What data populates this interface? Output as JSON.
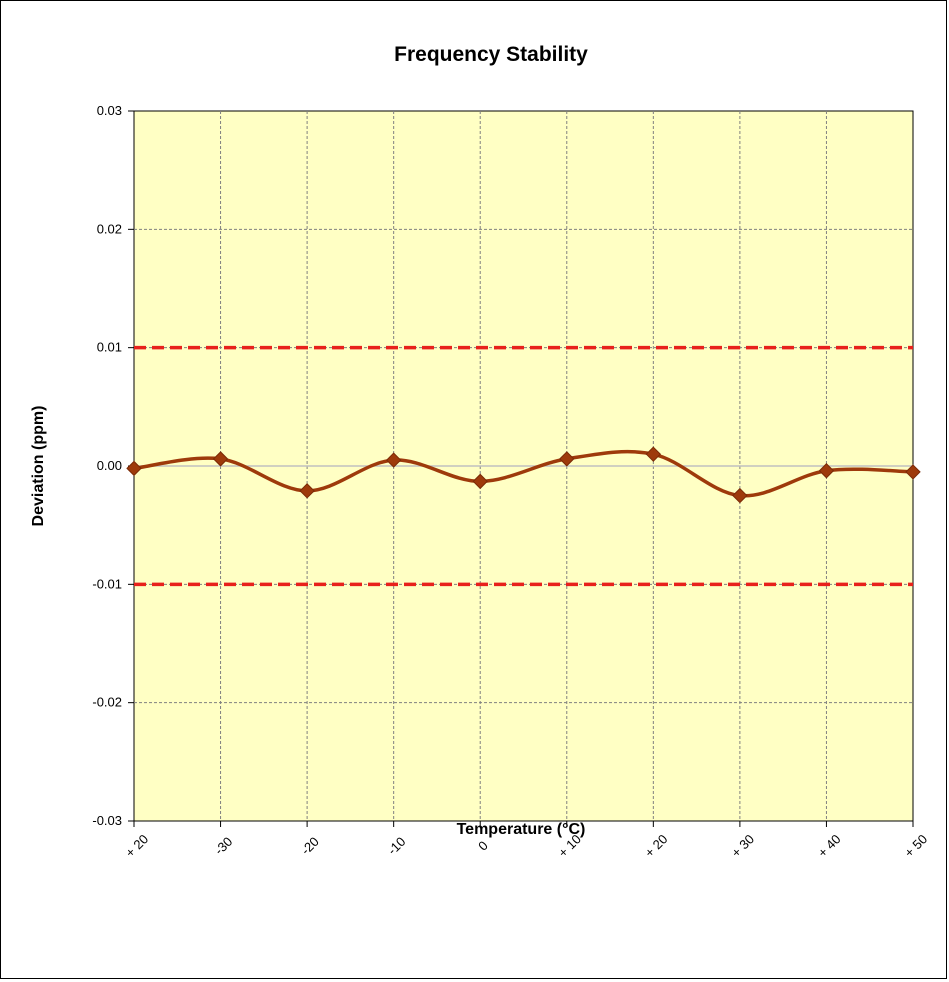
{
  "chart_data": {
    "type": "line",
    "title": "Frequency Stability",
    "xlabel": "Temperature (°C)",
    "ylabel": "Deviation (ppm)",
    "categories": [
      "+ 20",
      "-30",
      "-20",
      "-10",
      "0",
      "+ 10",
      "+ 20",
      "+ 30",
      "+ 40",
      "+ 50"
    ],
    "y_ticks": [
      "0.03",
      "0.02",
      "0.01",
      "0.00",
      "-0.01",
      "-0.02",
      "-0.03"
    ],
    "ylim": [
      -0.03,
      0.03
    ],
    "grid": true,
    "series": [
      {
        "values": [
          -0.0002,
          0.0006,
          -0.0021,
          0.0005,
          -0.0013,
          0.0006,
          0.001,
          -0.0025,
          -0.0004,
          -0.0005
        ],
        "color": "#9e3a0b",
        "marker": "diamond",
        "smooth": true
      }
    ],
    "reference_lines": [
      {
        "y": 0.01,
        "color": "#e8211c",
        "style": "dashed"
      },
      {
        "y": -0.01,
        "color": "#e8211c",
        "style": "dashed"
      }
    ],
    "plot_background": "#ffffc4",
    "grid_color": "#808080"
  }
}
